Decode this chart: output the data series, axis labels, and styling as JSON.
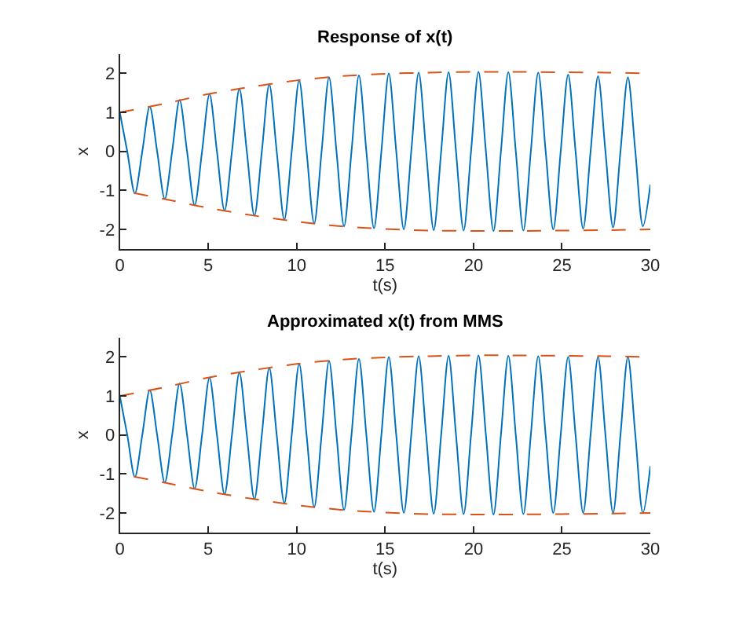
{
  "chart_data": [
    {
      "type": "line",
      "title": "Response of x(t)",
      "xlabel": "t(s)",
      "ylabel": "x",
      "xlim": [
        0,
        30
      ],
      "ylim": [
        -2.5,
        2.5
      ],
      "xticks": [
        0,
        5,
        10,
        15,
        20,
        25,
        30
      ],
      "yticks": [
        -2,
        -1,
        0,
        1,
        2
      ],
      "marker": "none",
      "series": [
        {
          "color": "#0072bd",
          "line_style": "solid",
          "x": [
            0,
            0.42,
            0.85,
            1.27,
            1.69,
            2.11,
            2.54,
            2.96,
            3.38,
            3.8,
            4.23,
            4.65,
            5.07,
            5.49,
            5.92,
            6.34,
            6.76,
            7.18,
            7.61,
            8.03,
            8.45,
            8.87,
            9.3,
            9.72,
            10.14,
            10.56,
            10.99,
            11.41,
            11.83,
            12.25,
            12.68,
            13.1,
            13.52,
            13.94,
            14.37,
            14.79,
            15.21,
            15.63,
            16.06,
            16.48,
            16.9,
            17.32,
            17.75,
            18.17,
            18.59,
            19.01,
            19.44,
            19.86,
            20.28,
            20.7,
            21.13,
            21.55,
            21.97,
            22.39,
            22.82,
            23.24,
            23.66,
            24.08,
            24.51,
            24.93,
            25.35,
            25.77,
            26.2,
            26.62,
            27.04,
            27.46,
            27.89,
            28.31,
            28.73,
            29.15,
            29.58,
            30
          ],
          "values": [
            1,
            0,
            -1.08,
            0,
            1.15,
            0,
            -1.22,
            0,
            1.32,
            0,
            -1.38,
            0,
            1.47,
            0,
            -1.52,
            0,
            1.6,
            0,
            -1.65,
            0,
            1.72,
            0,
            -1.75,
            0,
            1.82,
            0,
            -1.85,
            0,
            1.9,
            0,
            -1.92,
            0,
            1.95,
            0,
            -1.97,
            0,
            2.0,
            0,
            -2.0,
            0,
            2.02,
            0,
            -2.02,
            0,
            2.03,
            0,
            -2.03,
            0,
            2.04,
            0,
            -2.04,
            0,
            2.03,
            0,
            -2.03,
            0,
            2.02,
            0,
            -2.0,
            0,
            1.97,
            0,
            -1.98,
            0,
            1.93,
            0,
            -1.95,
            0,
            1.9,
            0,
            -1.92,
            -0.85
          ]
        },
        {
          "color": "#d95319",
          "line_style": "dashed",
          "x": [
            0,
            2.5,
            5,
            7.5,
            10,
            12.5,
            15,
            17.5,
            20,
            22.5,
            25,
            27.5,
            30
          ],
          "values": [
            1,
            1.22,
            1.47,
            1.66,
            1.82,
            1.93,
            1.99,
            2.02,
            2.04,
            2.04,
            2.03,
            2.02,
            2.0
          ]
        },
        {
          "color": "#d95319",
          "line_style": "dashed",
          "x": [
            0.8,
            2.5,
            5,
            7.5,
            10,
            12.5,
            15,
            17.5,
            20,
            22.5,
            25,
            27.5,
            30
          ],
          "values": [
            -1.07,
            -1.22,
            -1.45,
            -1.64,
            -1.8,
            -1.92,
            -1.99,
            -2.03,
            -2.04,
            -2.04,
            -2.03,
            -2.02,
            -2.0
          ]
        }
      ]
    },
    {
      "type": "line",
      "title": "Approximated x(t) from MMS",
      "xlabel": "t(s)",
      "ylabel": "x",
      "xlim": [
        0,
        30
      ],
      "ylim": [
        -2.5,
        2.5
      ],
      "xticks": [
        0,
        5,
        10,
        15,
        20,
        25,
        30
      ],
      "yticks": [
        -2,
        -1,
        0,
        1,
        2
      ],
      "marker": "none",
      "series": [
        {
          "color": "#0072bd",
          "line_style": "solid",
          "x": [
            0,
            0.42,
            0.85,
            1.27,
            1.69,
            2.11,
            2.54,
            2.96,
            3.38,
            3.8,
            4.23,
            4.65,
            5.07,
            5.49,
            5.92,
            6.34,
            6.76,
            7.18,
            7.61,
            8.03,
            8.45,
            8.87,
            9.3,
            9.72,
            10.14,
            10.56,
            10.99,
            11.41,
            11.83,
            12.25,
            12.68,
            13.1,
            13.52,
            13.94,
            14.37,
            14.79,
            15.21,
            15.63,
            16.06,
            16.48,
            16.9,
            17.32,
            17.75,
            18.17,
            18.59,
            19.01,
            19.44,
            19.86,
            20.28,
            20.7,
            21.13,
            21.55,
            21.97,
            22.39,
            22.82,
            23.24,
            23.66,
            24.08,
            24.51,
            24.93,
            25.35,
            25.77,
            26.2,
            26.62,
            27.04,
            27.46,
            27.89,
            28.31,
            28.73,
            29.15,
            29.58,
            30
          ],
          "values": [
            1,
            0,
            -1.08,
            0,
            1.15,
            0,
            -1.22,
            0,
            1.32,
            0,
            -1.38,
            0,
            1.47,
            0,
            -1.52,
            0,
            1.6,
            0,
            -1.65,
            0,
            1.72,
            0,
            -1.75,
            0,
            1.82,
            0,
            -1.85,
            0,
            1.9,
            0,
            -1.92,
            0,
            1.95,
            0,
            -1.97,
            0,
            2.0,
            0,
            -2.0,
            0,
            2.02,
            0,
            -2.02,
            0,
            2.03,
            0,
            -2.03,
            0,
            2.04,
            0,
            -2.04,
            0,
            2.03,
            0,
            -2.03,
            0,
            2.02,
            0,
            -2.0,
            0,
            2.0,
            0,
            -2.0,
            0,
            2.0,
            0,
            -2.0,
            0,
            2.0,
            0,
            -2.0,
            -0.8
          ]
        },
        {
          "color": "#d95319",
          "line_style": "dashed",
          "x": [
            0,
            2.5,
            5,
            7.5,
            10,
            12.5,
            15,
            17.5,
            20,
            22.5,
            25,
            27.5,
            30
          ],
          "values": [
            1,
            1.22,
            1.47,
            1.66,
            1.82,
            1.93,
            1.99,
            2.02,
            2.04,
            2.04,
            2.03,
            2.02,
            2.0
          ]
        },
        {
          "color": "#d95319",
          "line_style": "dashed",
          "x": [
            0.8,
            2.5,
            5,
            7.5,
            10,
            12.5,
            15,
            17.5,
            20,
            22.5,
            25,
            27.5,
            30
          ],
          "values": [
            -1.07,
            -1.22,
            -1.45,
            -1.64,
            -1.8,
            -1.92,
            -1.99,
            -2.03,
            -2.04,
            -2.04,
            -2.03,
            -2.02,
            -2.0
          ]
        }
      ]
    }
  ]
}
